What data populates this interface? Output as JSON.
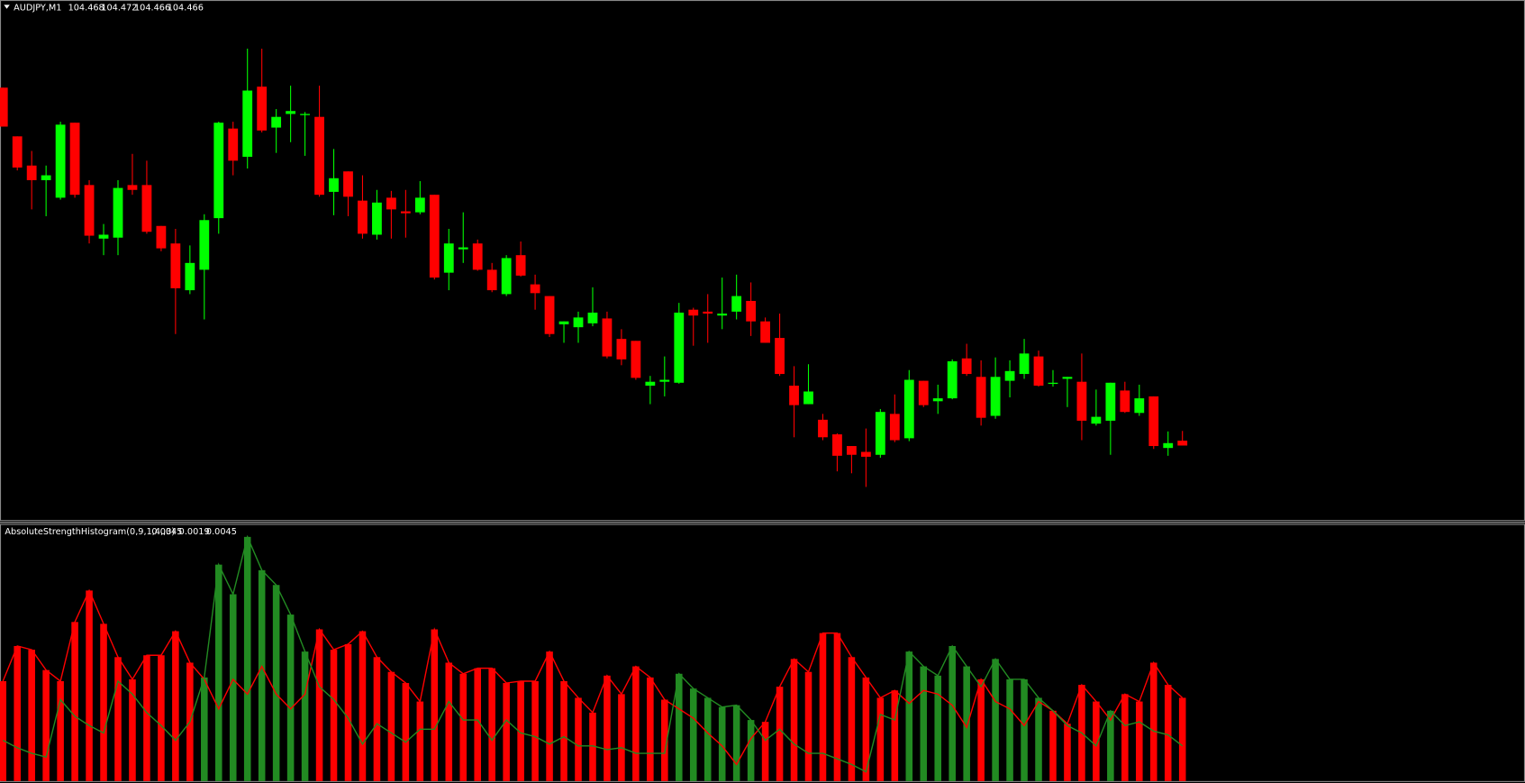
{
  "chart_data": [
    {
      "type": "candlestick",
      "title": "AUDJPY,M1",
      "up_color": "#00ff00",
      "down_color": "#ff0000",
      "ylim": [
        104.435,
        104.649
      ],
      "open": [
        104.613,
        104.593,
        104.581,
        104.575,
        104.5678,
        104.5986,
        104.573,
        104.551,
        104.5514,
        104.573,
        104.573,
        104.5562,
        104.549,
        104.5298,
        104.5382,
        104.5594,
        104.5962,
        104.5846,
        104.6134,
        104.5966,
        104.6022,
        104.6022,
        104.601,
        104.5702,
        104.5786,
        104.5666,
        104.5526,
        104.5678,
        104.5622,
        104.5618,
        104.569,
        104.537,
        104.5466,
        104.549,
        104.5382,
        104.5282,
        104.5442,
        104.5322,
        104.5274,
        104.5158,
        104.5146,
        104.5162,
        104.5182,
        104.5098,
        104.509,
        104.4906,
        104.4922,
        104.4918,
        104.5218,
        104.521,
        104.5194,
        104.521,
        104.5254,
        104.517,
        104.5102,
        104.4906,
        104.483,
        104.4766,
        104.4706,
        104.4658,
        104.4634,
        104.4622,
        104.479,
        104.469,
        104.4926,
        104.4842,
        104.4854,
        104.5018,
        104.4942,
        104.4782,
        104.4926,
        104.4954,
        104.5026,
        104.4914,
        104.4934,
        104.4922,
        104.475,
        104.4762,
        104.4886,
        104.4794,
        104.4862,
        104.465,
        104.468
      ],
      "high": [
        104.613,
        104.593,
        104.587,
        104.581,
        104.599,
        104.5986,
        104.575,
        104.557,
        104.575,
        104.5858,
        104.583,
        104.5562,
        104.555,
        104.5482,
        104.561,
        104.599,
        104.599,
        104.629,
        104.629,
        104.6042,
        104.6138,
        104.603,
        104.6138,
        104.5878,
        104.5786,
        104.577,
        104.571,
        104.5706,
        104.571,
        104.5746,
        104.569,
        104.555,
        104.5618,
        104.5506,
        104.541,
        104.5442,
        104.5498,
        104.5362,
        104.5274,
        104.517,
        104.521,
        104.531,
        104.521,
        104.5138,
        104.509,
        104.4946,
        104.5026,
        104.5246,
        104.5226,
        104.5282,
        104.535,
        104.5362,
        104.533,
        104.5186,
        104.5202,
        104.4986,
        104.4994,
        104.479,
        104.471,
        104.4658,
        104.473,
        104.481,
        104.487,
        104.497,
        104.4926,
        104.491,
        104.5014,
        104.5078,
        104.501,
        104.5022,
        104.501,
        104.5098,
        104.505,
        104.497,
        104.4942,
        104.5038,
        104.489,
        104.4918,
        104.4922,
        104.491,
        104.4862,
        104.4718,
        104.472
      ],
      "low": [
        104.597,
        104.579,
        104.563,
        104.5602,
        104.567,
        104.5678,
        104.549,
        104.5442,
        104.5442,
        104.569,
        104.553,
        104.5458,
        104.5118,
        104.5282,
        104.5178,
        104.553,
        104.577,
        104.5798,
        104.5946,
        104.5862,
        104.5906,
        104.585,
        104.5682,
        104.5606,
        104.5602,
        104.551,
        104.5506,
        104.551,
        104.5514,
        104.561,
        104.5342,
        104.5298,
        104.541,
        104.5378,
        104.529,
        104.5274,
        104.5354,
        104.5218,
        104.5106,
        104.5082,
        104.5082,
        104.515,
        104.5018,
        104.499,
        104.493,
        104.483,
        104.4862,
        104.4914,
        104.507,
        104.5082,
        104.5138,
        104.5178,
        104.511,
        104.5082,
        104.4946,
        104.4694,
        104.483,
        104.4682,
        104.4554,
        104.4546,
        104.449,
        104.461,
        104.4674,
        104.4678,
        104.4818,
        104.479,
        104.485,
        104.4946,
        104.4742,
        104.477,
        104.4858,
        104.4934,
        104.4902,
        104.4902,
        104.4818,
        104.4682,
        104.4742,
        104.4622,
        104.4794,
        104.4782,
        104.4646,
        104.4618,
        104.466
      ],
      "close": [
        104.597,
        104.5802,
        104.575,
        104.577,
        104.5978,
        104.569,
        104.5522,
        104.5526,
        104.5718,
        104.571,
        104.5538,
        104.547,
        104.5306,
        104.541,
        104.5586,
        104.5986,
        104.583,
        104.6118,
        104.5954,
        104.601,
        104.6034,
        104.6022,
        104.569,
        104.5758,
        104.5682,
        104.553,
        104.5658,
        104.563,
        104.5614,
        104.5678,
        104.535,
        104.549,
        104.5474,
        104.5382,
        104.5298,
        104.543,
        104.5358,
        104.5286,
        104.5118,
        104.517,
        104.5186,
        104.5206,
        104.5026,
        104.5014,
        104.4938,
        104.4922,
        104.493,
        104.5206,
        104.5194,
        104.5202,
        104.5202,
        104.5274,
        104.517,
        104.5082,
        104.4954,
        104.4826,
        104.4882,
        104.4694,
        104.4618,
        104.4622,
        104.4614,
        104.4798,
        104.4682,
        104.493,
        104.4826,
        104.4854,
        104.5006,
        104.4954,
        104.4774,
        104.4942,
        104.4966,
        104.5038,
        104.4906,
        104.4918,
        104.4942,
        104.4762,
        104.4778,
        104.4918,
        104.4798,
        104.4854,
        104.4658,
        104.467,
        104.466
      ]
    },
    {
      "type": "histogram-lines",
      "title": "AbsoluteStrengthHistogram(0,9,1,4,,3)",
      "ylim": [
        0,
        0.0139
      ],
      "series": [
        {
          "color": "#ff0000",
          "values": [
            0.0054,
            0.0073,
            0.0071,
            0.006,
            0.0054,
            0.0086,
            0.0103,
            0.0085,
            0.0067,
            0.0055,
            0.0068,
            0.0068,
            0.0081,
            0.0064,
            0.0055,
            0.0039,
            0.0055,
            0.0047,
            0.0062,
            0.0047,
            0.0039,
            0.0047,
            0.0082,
            0.0071,
            0.0074,
            0.0081,
            0.0067,
            0.0059,
            0.0053,
            0.0043,
            0.0082,
            0.0064,
            0.0058,
            0.0061,
            0.0061,
            0.0053,
            0.0054,
            0.0054,
            0.007,
            0.0054,
            0.0045,
            0.0037,
            0.0057,
            0.0047,
            0.0062,
            0.0056,
            0.0044,
            0.0039,
            0.0034,
            0.0026,
            0.0019,
            0.0009,
            0.0023,
            0.0032,
            0.0051,
            0.0066,
            0.0059,
            0.008,
            0.008,
            0.0067,
            0.0056,
            0.0045,
            0.0049,
            0.0042,
            0.0049,
            0.0047,
            0.0041,
            0.0029,
            0.0055,
            0.0043,
            0.0039,
            0.003,
            0.0043,
            0.0038,
            0.0031,
            0.0052,
            0.0043,
            0.0033,
            0.0047,
            0.0043,
            0.0064,
            0.0052,
            0.0045
          ]
        },
        {
          "color": "#228b22",
          "values": [
            0.0022,
            0.0018,
            0.0015,
            0.0013,
            0.0044,
            0.0035,
            0.003,
            0.0026,
            0.0054,
            0.0047,
            0.0037,
            0.003,
            0.0022,
            0.0032,
            0.0056,
            0.0117,
            0.0101,
            0.0132,
            0.0114,
            0.0106,
            0.009,
            0.007,
            0.0051,
            0.0044,
            0.0034,
            0.002,
            0.0031,
            0.0026,
            0.0021,
            0.0028,
            0.0028,
            0.0043,
            0.0033,
            0.0033,
            0.0022,
            0.0033,
            0.0026,
            0.0024,
            0.002,
            0.0024,
            0.0019,
            0.0019,
            0.0017,
            0.0018,
            0.0015,
            0.0015,
            0.0015,
            0.0058,
            0.005,
            0.0045,
            0.004,
            0.0041,
            0.0033,
            0.0022,
            0.0028,
            0.002,
            0.0015,
            0.0015,
            0.0012,
            0.0009,
            0.0005,
            0.0036,
            0.0033,
            0.007,
            0.0062,
            0.0057,
            0.0073,
            0.0062,
            0.0051,
            0.0066,
            0.0055,
            0.0055,
            0.0045,
            0.0038,
            0.003,
            0.0026,
            0.0019,
            0.0038,
            0.003,
            0.0032,
            0.0027,
            0.0025,
            0.0019
          ]
        }
      ]
    }
  ]
}
